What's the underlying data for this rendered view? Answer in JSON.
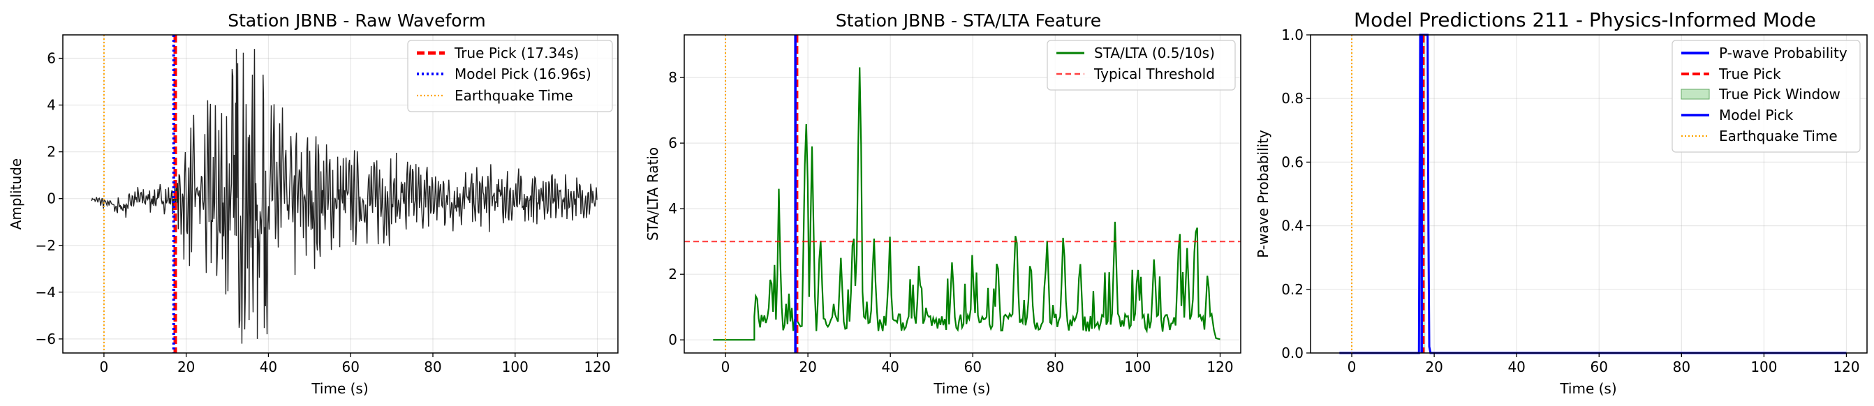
{
  "chart_data": [
    {
      "type": "line",
      "title": "Station JBNB - Raw Waveform",
      "xlabel": "Time (s)",
      "ylabel": "Amplitude",
      "xlim": [
        -10,
        125
      ],
      "ylim": [
        -6.6,
        7.0
      ],
      "xticks": [
        0,
        20,
        40,
        60,
        80,
        100,
        120
      ],
      "yticks": [
        -6,
        -4,
        -2,
        0,
        2,
        4,
        6
      ],
      "grid": true,
      "legend_position": "top-right",
      "colors": {
        "waveform": "#222222",
        "true_pick": "#ff0000",
        "model_pick": "#0000ff",
        "earthquake_time": "#ffa500"
      },
      "legend": [
        "True Pick (17.34s)",
        "Model Pick (16.96s)",
        "Earthquake Time"
      ],
      "vlines": {
        "true_pick": 17.34,
        "model_pick": 16.96,
        "earthquake_time": 0
      },
      "waveform_envelope": [
        {
          "t": -3,
          "amp": 0.1
        },
        {
          "t": 5,
          "amp": 0.45
        },
        {
          "t": 10,
          "amp": 0.5
        },
        {
          "t": 17,
          "amp": 0.6
        },
        {
          "t": 20,
          "amp": 2.5
        },
        {
          "t": 25,
          "amp": 3.4
        },
        {
          "t": 32,
          "amp": 5.6
        },
        {
          "t": 37,
          "amp": 5.3
        },
        {
          "t": 45,
          "amp": 3.0
        },
        {
          "t": 60,
          "amp": 1.8
        },
        {
          "t": 80,
          "amp": 1.3
        },
        {
          "t": 100,
          "amp": 1.1
        },
        {
          "t": 120,
          "amp": 0.7
        }
      ]
    },
    {
      "type": "line",
      "title": "Station JBNB - STA/LTA Feature",
      "xlabel": "Time (s)",
      "ylabel": "STA/LTA Ratio",
      "xlim": [
        -10,
        125
      ],
      "ylim": [
        -0.4,
        9.3
      ],
      "xticks": [
        0,
        20,
        40,
        60,
        80,
        100,
        120
      ],
      "yticks": [
        0,
        2,
        4,
        6,
        8
      ],
      "grid": true,
      "legend_position": "top-right",
      "colors": {
        "sta_lta": "#008000",
        "threshold": "#ff0000",
        "true_pick": "#ff0000",
        "model_pick": "#0000ff",
        "earthquake_time": "#ffa500"
      },
      "legend": [
        "STA/LTA (0.5/10s)",
        "Typical Threshold"
      ],
      "threshold": 3,
      "vlines": {
        "true_pick": 17.34,
        "model_pick": 16.96,
        "earthquake_time": 0
      },
      "peaks": [
        {
          "t": 7.5,
          "v": 1.6
        },
        {
          "t": 11,
          "v": 2.2
        },
        {
          "t": 13,
          "v": 3.6
        },
        {
          "t": 19.5,
          "v": 7.4
        },
        {
          "t": 21,
          "v": 5.9
        },
        {
          "t": 23,
          "v": 3.4
        },
        {
          "t": 28,
          "v": 2.5
        },
        {
          "t": 31,
          "v": 3.7
        },
        {
          "t": 32.5,
          "v": 8.8
        },
        {
          "t": 36,
          "v": 3.2
        },
        {
          "t": 40,
          "v": 1.9
        },
        {
          "t": 47,
          "v": 2.3
        },
        {
          "t": 55,
          "v": 2.5
        },
        {
          "t": 60,
          "v": 2.1
        },
        {
          "t": 66,
          "v": 2.6
        },
        {
          "t": 70.5,
          "v": 3.8
        },
        {
          "t": 74,
          "v": 2.7
        },
        {
          "t": 78,
          "v": 3.2
        },
        {
          "t": 82,
          "v": 3.5
        },
        {
          "t": 86,
          "v": 2.6
        },
        {
          "t": 94.5,
          "v": 3.6
        },
        {
          "t": 100,
          "v": 2.4
        },
        {
          "t": 104,
          "v": 2.6
        },
        {
          "t": 110,
          "v": 3.1
        },
        {
          "t": 112,
          "v": 2.8
        },
        {
          "t": 114,
          "v": 3.7
        },
        {
          "t": 117,
          "v": 2.2
        }
      ]
    },
    {
      "type": "line",
      "title": "Model Predictions 211 - Physics-Informed Mode",
      "xlabel": "Time (s)",
      "ylabel": "P-wave Probability",
      "xlim": [
        -10,
        125
      ],
      "ylim": [
        0,
        1.0
      ],
      "xticks": [
        0,
        20,
        40,
        60,
        80,
        100,
        120
      ],
      "yticks": [
        0.0,
        0.2,
        0.4,
        0.6,
        0.8,
        1.0
      ],
      "grid": true,
      "legend_position": "top-right",
      "colors": {
        "probability": "#0000ff",
        "true_pick": "#ff0000",
        "window": "#8fd18f",
        "model_pick": "#0000ff",
        "earthquake_time": "#ffa500"
      },
      "legend": [
        "P-wave Probability",
        "True Pick",
        "True Pick Window",
        "Model Pick",
        "Earthquake Time"
      ],
      "vlines": {
        "true_pick": 17.34,
        "model_pick": 16.96,
        "earthquake_time": 0
      },
      "probability": {
        "t": [
          -3,
          16.3,
          16.6,
          18.4,
          18.6,
          18.8,
          19.1,
          120
        ],
        "p": [
          0,
          0,
          1.0,
          1.0,
          0.38,
          0.02,
          0,
          0
        ]
      }
    }
  ]
}
